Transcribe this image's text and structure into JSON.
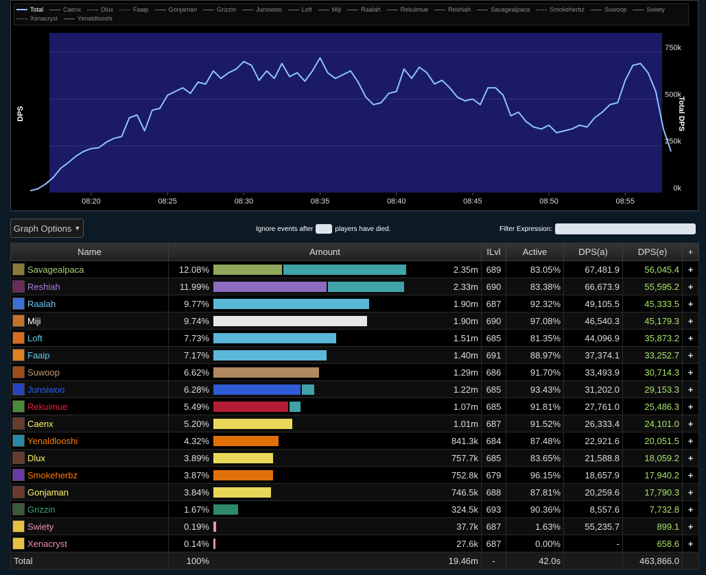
{
  "legend": [
    {
      "label": "Total",
      "style": "active"
    },
    {
      "label": "Caenx",
      "style": "solid"
    },
    {
      "label": "Dlux",
      "style": "dashed"
    },
    {
      "label": "Faaip",
      "style": "dotted"
    },
    {
      "label": "Gonjaman",
      "style": "solid"
    },
    {
      "label": "Grizzin",
      "style": "solid"
    },
    {
      "label": "Junsiwoo",
      "style": "solid"
    },
    {
      "label": "Loft",
      "style": "solid"
    },
    {
      "label": "Miji",
      "style": "solid"
    },
    {
      "label": "Raalah",
      "style": "solid"
    },
    {
      "label": "Rekuimue",
      "style": "solid"
    },
    {
      "label": "Reshiah",
      "style": "solid"
    },
    {
      "label": "Savagealpaca",
      "style": "solid"
    },
    {
      "label": "Smokeherbz",
      "style": "dashed"
    },
    {
      "label": "Suwoop",
      "style": "solid"
    },
    {
      "label": "Swiety",
      "style": "solid"
    },
    {
      "label": "Xenacryst",
      "style": "dashed"
    },
    {
      "label": "Yenaldlooshi",
      "style": "solid"
    }
  ],
  "chart_data": {
    "type": "line",
    "left_axis_label": "DPS",
    "right_axis_label": "Total DPS",
    "x_ticks": [
      "08:20",
      "08:25",
      "08:30",
      "08:35",
      "08:40",
      "08:45",
      "08:50",
      "08:55"
    ],
    "y_ticks": [
      "0k",
      "250k",
      "500k",
      "750k"
    ],
    "ylim": [
      0,
      780000
    ],
    "line_color": "#8ec4ff",
    "plot_bg": "#1a1a66",
    "x_unit": "minutes since 08:16",
    "series": [
      {
        "name": "Total",
        "x": [
          0,
          0.5,
          1,
          1.5,
          2,
          2.5,
          3,
          3.5,
          4,
          4.5,
          5,
          5.5,
          6,
          6.5,
          7,
          7.5,
          8,
          8.5,
          9,
          9.5,
          10,
          10.5,
          11,
          11.5,
          12,
          12.5,
          13,
          13.5,
          14,
          14.5,
          15,
          15.5,
          16,
          16.5,
          17,
          17.5,
          18,
          18.5,
          19,
          19.5,
          20,
          20.5,
          21,
          21.5,
          22,
          22.5,
          23,
          23.5,
          24,
          24.5,
          25,
          25.5,
          26,
          26.5,
          27,
          27.5,
          28,
          28.5,
          29,
          29.5,
          30,
          30.5,
          31,
          31.5,
          32,
          32.5,
          33,
          33.5,
          34,
          34.5,
          35,
          35.5,
          36,
          36.5,
          37,
          37.5,
          38,
          38.5,
          39,
          39.5,
          40,
          40.5,
          41,
          41.5,
          42
        ],
        "y": [
          10000,
          20000,
          45000,
          80000,
          130000,
          160000,
          195000,
          220000,
          235000,
          240000,
          270000,
          290000,
          300000,
          400000,
          415000,
          330000,
          440000,
          450000,
          520000,
          540000,
          560000,
          530000,
          590000,
          580000,
          650000,
          610000,
          640000,
          660000,
          700000,
          680000,
          600000,
          650000,
          610000,
          690000,
          620000,
          640000,
          595000,
          650000,
          720000,
          640000,
          610000,
          630000,
          650000,
          590000,
          510000,
          470000,
          480000,
          530000,
          540000,
          660000,
          610000,
          670000,
          640000,
          580000,
          600000,
          560000,
          510000,
          490000,
          500000,
          470000,
          560000,
          560000,
          520000,
          410000,
          430000,
          380000,
          350000,
          340000,
          360000,
          320000,
          330000,
          340000,
          360000,
          350000,
          400000,
          430000,
          470000,
          480000,
          600000,
          680000,
          690000,
          640000,
          540000,
          340000,
          220000
        ]
      }
    ]
  },
  "controls": {
    "graph_options": "Graph Options",
    "ignore_before": "Ignore events after",
    "ignore_after": "players have died.",
    "ignore_value": "",
    "filter_label": "Filter Expression:",
    "filter_value": ""
  },
  "table": {
    "headers": {
      "name": "Name",
      "amount": "Amount",
      "ilvl": "ILvl",
      "active": "Active",
      "dps_a": "DPS(a)",
      "dps_e": "DPS(e)",
      "expand": "+"
    },
    "rows": [
      {
        "name": "Savagealpaca",
        "name_color": "#a9d271",
        "icon_color": "#8a7a3a",
        "pct": "12.08%",
        "bar_fraction": 1.0,
        "bar_colors": [
          "#8fa85a",
          "#3fa3a8"
        ],
        "bar_split": 0.36,
        "amount": "2.35m",
        "ilvl": "689",
        "active": "83.05%",
        "dps_a": "67,481.9",
        "dps_e": "56,045.4"
      },
      {
        "name": "Reshiah",
        "name_color": "#a97ee0",
        "icon_color": "#6a2a5a",
        "pct": "11.99%",
        "bar_fraction": 0.99,
        "bar_colors": [
          "#8c6bc0",
          "#3fa3a8"
        ],
        "bar_split": 0.6,
        "amount": "2.33m",
        "ilvl": "690",
        "active": "83.38%",
        "dps_a": "66,673.9",
        "dps_e": "55,595.2"
      },
      {
        "name": "Raalah",
        "name_color": "#69ccf0",
        "icon_color": "#3b6fd6",
        "pct": "9.77%",
        "bar_fraction": 0.81,
        "bar_colors": [
          "#5ab7d8"
        ],
        "amount": "1.90m",
        "ilvl": "687",
        "active": "92.32%",
        "dps_a": "49,105.5",
        "dps_e": "45,333.5"
      },
      {
        "name": "Miji",
        "name_color": "#ffffff",
        "icon_color": "#c4722a",
        "pct": "9.74%",
        "bar_fraction": 0.8,
        "bar_colors": [
          "#e8e8e8"
        ],
        "amount": "1.90m",
        "ilvl": "690",
        "active": "97.08%",
        "dps_a": "46,540.3",
        "dps_e": "45,179.3"
      },
      {
        "name": "Loft",
        "name_color": "#69ccf0",
        "icon_color": "#d96a1f",
        "pct": "7.73%",
        "bar_fraction": 0.64,
        "bar_colors": [
          "#5ab7d8"
        ],
        "amount": "1.51m",
        "ilvl": "685",
        "active": "81.35%",
        "dps_a": "44,096.9",
        "dps_e": "35,873.2"
      },
      {
        "name": "Faaip",
        "name_color": "#69ccf0",
        "icon_color": "#e0801f",
        "pct": "7.17%",
        "bar_fraction": 0.59,
        "bar_colors": [
          "#5ab7d8"
        ],
        "amount": "1.40m",
        "ilvl": "691",
        "active": "88.97%",
        "dps_a": "37,374.1",
        "dps_e": "33,252.7"
      },
      {
        "name": "Suwoop",
        "name_color": "#c79c6e",
        "icon_color": "#a04a1a",
        "pct": "6.62%",
        "bar_fraction": 0.55,
        "bar_colors": [
          "#b08b62"
        ],
        "amount": "1.29m",
        "ilvl": "686",
        "active": "91.70%",
        "dps_a": "33,493.9",
        "dps_e": "30,714.3"
      },
      {
        "name": "Junsiwoo",
        "name_color": "#2a5fff",
        "icon_color": "#2a44c0",
        "pct": "6.28%",
        "bar_fraction": 0.52,
        "bar_colors": [
          "#2f5bd6",
          "#3fa3a8"
        ],
        "bar_split": 0.88,
        "amount": "1.22m",
        "ilvl": "685",
        "active": "93.43%",
        "dps_a": "31,202.0",
        "dps_e": "29,153.3"
      },
      {
        "name": "Rekuimue",
        "name_color": "#e0263d",
        "icon_color": "#4a8a3a",
        "pct": "5.49%",
        "bar_fraction": 0.45,
        "bar_colors": [
          "#b31d35",
          "#3fa3a8"
        ],
        "bar_split": 0.87,
        "amount": "1.07m",
        "ilvl": "685",
        "active": "91.81%",
        "dps_a": "27,761.0",
        "dps_e": "25,486.3"
      },
      {
        "name": "Caenx",
        "name_color": "#fff569",
        "icon_color": "#6a3a2a",
        "pct": "5.20%",
        "bar_fraction": 0.41,
        "bar_colors": [
          "#e8d85a"
        ],
        "amount": "1.01m",
        "ilvl": "687",
        "active": "91.52%",
        "dps_a": "26,333.4",
        "dps_e": "24,101.0"
      },
      {
        "name": "Yenaldlooshi",
        "name_color": "#ff7d0a",
        "icon_color": "#2a8aa8",
        "pct": "4.32%",
        "bar_fraction": 0.34,
        "bar_colors": [
          "#e0700a"
        ],
        "amount": "841.3k",
        "ilvl": "684",
        "active": "87.48%",
        "dps_a": "22,921.6",
        "dps_e": "20,051.5"
      },
      {
        "name": "Dlux",
        "name_color": "#fff569",
        "icon_color": "#6a3a2a",
        "pct": "3.89%",
        "bar_fraction": 0.31,
        "bar_colors": [
          "#e8d85a"
        ],
        "amount": "757.7k",
        "ilvl": "685",
        "active": "83.65%",
        "dps_a": "21,588.8",
        "dps_e": "18,059.2"
      },
      {
        "name": "Smokeherbz",
        "name_color": "#ff7d0a",
        "icon_color": "#6a3aa8",
        "pct": "3.87%",
        "bar_fraction": 0.31,
        "bar_colors": [
          "#e0700a"
        ],
        "amount": "752.8k",
        "ilvl": "679",
        "active": "96.15%",
        "dps_a": "18,657.9",
        "dps_e": "17,940.2"
      },
      {
        "name": "Gonjaman",
        "name_color": "#fff569",
        "icon_color": "#6a3a2a",
        "pct": "3.84%",
        "bar_fraction": 0.3,
        "bar_colors": [
          "#e8d85a"
        ],
        "amount": "746.5k",
        "ilvl": "688",
        "active": "87.81%",
        "dps_a": "20,259.6",
        "dps_e": "17,790.3"
      },
      {
        "name": "Grizzin",
        "name_color": "#3ea873",
        "icon_color": "#3a5a3a",
        "pct": "1.67%",
        "bar_fraction": 0.13,
        "bar_colors": [
          "#2f8a6a"
        ],
        "amount": "324.5k",
        "ilvl": "693",
        "active": "90.36%",
        "dps_a": "8,557.6",
        "dps_e": "7,732.8"
      },
      {
        "name": "Swiety",
        "name_color": "#f58cba",
        "icon_color": "#e8c040",
        "pct": "0.19%",
        "bar_fraction": 0.015,
        "bar_colors": [
          "#f58cba"
        ],
        "amount": "37.7k",
        "ilvl": "687",
        "active": "1.63%",
        "dps_a": "55,235.7",
        "dps_e": "899.1"
      },
      {
        "name": "Xenacryst",
        "name_color": "#f58cba",
        "icon_color": "#e8c040",
        "pct": "0.14%",
        "bar_fraction": 0.01,
        "bar_colors": [
          "#f58cba"
        ],
        "amount": "27.6k",
        "ilvl": "687",
        "active": "0.00%",
        "dps_a": "-",
        "dps_e": "658.6"
      }
    ],
    "total": {
      "name": "Total",
      "pct": "100%",
      "amount": "19.46m",
      "ilvl": "-",
      "active": "42.0s",
      "dps_a": "",
      "dps_e": "463,866.0"
    }
  }
}
